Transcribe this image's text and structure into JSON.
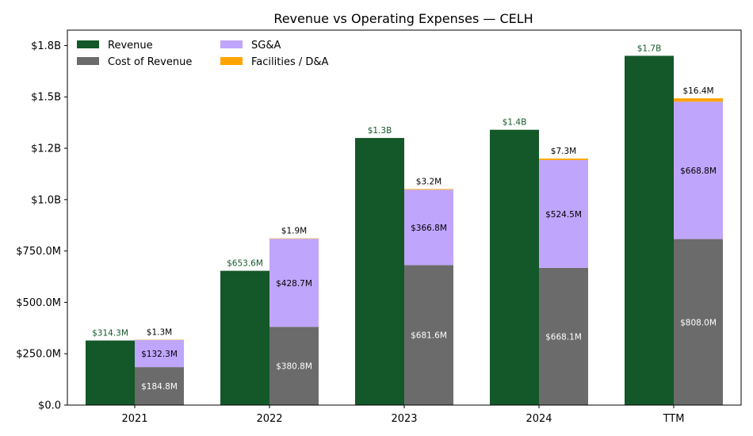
{
  "chart_data": {
    "type": "bar",
    "title": "Revenue vs Operating Expenses — CELH",
    "xlabel": "",
    "ylabel": "",
    "categories": [
      "2021",
      "2022",
      "2023",
      "2024",
      "TTM"
    ],
    "ylim": [
      0,
      1825000000
    ],
    "yticks": [
      0,
      250000000,
      500000000,
      750000000,
      1000000000,
      1250000000,
      1500000000,
      1750000000
    ],
    "ytick_labels": [
      "$0.0",
      "$250.0M",
      "$500.0M",
      "$750.0M",
      "$1.0B",
      "$1.2B",
      "$1.5B",
      "$1.8B"
    ],
    "grid": false,
    "legend_position": "top-left",
    "series": [
      {
        "name": "Revenue",
        "group": "revenue",
        "color": "#145728",
        "values": [
          314300000,
          653600000,
          1300000000,
          1340000000,
          1700000000
        ],
        "labels": [
          "$314.3M",
          "$653.6M",
          "$1.3B",
          "$1.4B",
          "$1.7B"
        ],
        "label_color": "#145728"
      },
      {
        "name": "Cost of Revenue",
        "group": "expenses",
        "color": "#6b6b6b",
        "values": [
          184800000,
          380800000,
          681600000,
          668100000,
          808000000
        ],
        "labels": [
          "$184.8M",
          "$380.8M",
          "$681.6M",
          "$668.1M",
          "$808.0M"
        ],
        "label_color": "#ffffff"
      },
      {
        "name": "SG&A",
        "group": "expenses",
        "color": "#c0a5fc",
        "values": [
          132300000,
          428700000,
          366800000,
          524500000,
          668800000
        ],
        "labels": [
          "$132.3M",
          "$428.7M",
          "$366.8M",
          "$524.5M",
          "$668.8M"
        ],
        "label_color": "#000000"
      },
      {
        "name": "Facilities / D&A",
        "group": "expenses",
        "color": "#ffa500",
        "values": [
          1300000,
          1900000,
          3200000,
          7300000,
          16400000
        ],
        "labels": [
          "$1.3M",
          "$1.9M",
          "$3.2M",
          "$7.3M",
          "$16.4M"
        ],
        "label_color": "#000000"
      }
    ]
  }
}
